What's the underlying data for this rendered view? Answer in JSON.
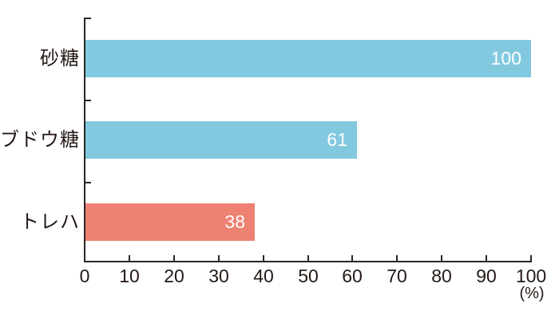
{
  "chart_data": {
    "type": "bar",
    "orientation": "horizontal",
    "title": "",
    "categories": [
      "砂糖",
      "ブドウ糖",
      "トレハ"
    ],
    "values": [
      100,
      61,
      38
    ],
    "bar_colors": [
      "#82C9E0",
      "#82C9E0",
      "#ED8172"
    ],
    "value_label_color": "#FFFFFF",
    "xlim": [
      0,
      100
    ],
    "x_ticks": [
      0,
      10,
      20,
      30,
      40,
      50,
      60,
      70,
      80,
      90,
      100
    ],
    "x_unit_label": "(%)",
    "xlabel": "(%)",
    "ylabel": "",
    "grid": false,
    "legend": false,
    "axis_color": "#2A2523",
    "text_color": "#231815",
    "background_color": "#FFFFFF"
  }
}
